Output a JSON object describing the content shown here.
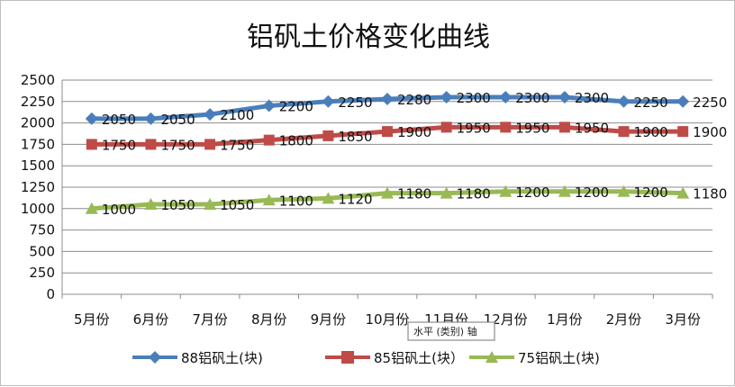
{
  "chart_data": {
    "type": "line",
    "title": "铝矾土价格变化曲线",
    "categories": [
      "5月份",
      "6月份",
      "7月份",
      "8月份",
      "9月份",
      "10月份",
      "11月份",
      "12月份",
      "1月份",
      "2月份",
      "3月份"
    ],
    "ylim": [
      0,
      2500
    ],
    "yticks": [
      0,
      250,
      500,
      750,
      1000,
      1250,
      1500,
      1750,
      2000,
      2250,
      2500
    ],
    "grid": true,
    "legend_position": "bottom",
    "series": [
      {
        "name": "88铝矾土(块)",
        "color": "#4a7ebb",
        "marker": "diamond",
        "values": [
          2050,
          2050,
          2100,
          2200,
          2250,
          2280,
          2300,
          2300,
          2300,
          2250,
          2250
        ],
        "labels": [
          "2050",
          "2050",
          "2100",
          "2200",
          "2250",
          "2280",
          "2300",
          "2300",
          "2300",
          "2250",
          "2250"
        ]
      },
      {
        "name": "85铝矾土(块）",
        "color": "#be4b48",
        "marker": "square",
        "values": [
          1750,
          1750,
          1750,
          1800,
          1850,
          1900,
          1950,
          1950,
          1950,
          1900,
          1900
        ],
        "labels": [
          "1750",
          "1750",
          "1750",
          "1800",
          "1850",
          "1900",
          "1950",
          "1950",
          "1950",
          "1900",
          "1900"
        ]
      },
      {
        "name": "75铝矾土(块)",
        "color": "#98b954",
        "marker": "triangle",
        "values": [
          1000,
          1050,
          1050,
          1100,
          1120,
          1180,
          1180,
          1200,
          1200,
          1200,
          1180
        ],
        "labels": [
          "1000",
          "1050",
          "1050",
          "1100",
          "1120",
          "1180",
          "1180",
          "1200",
          "1200",
          "1200",
          "1180"
        ]
      }
    ]
  },
  "tooltip": {
    "text": "水平 (类别) 轴"
  }
}
